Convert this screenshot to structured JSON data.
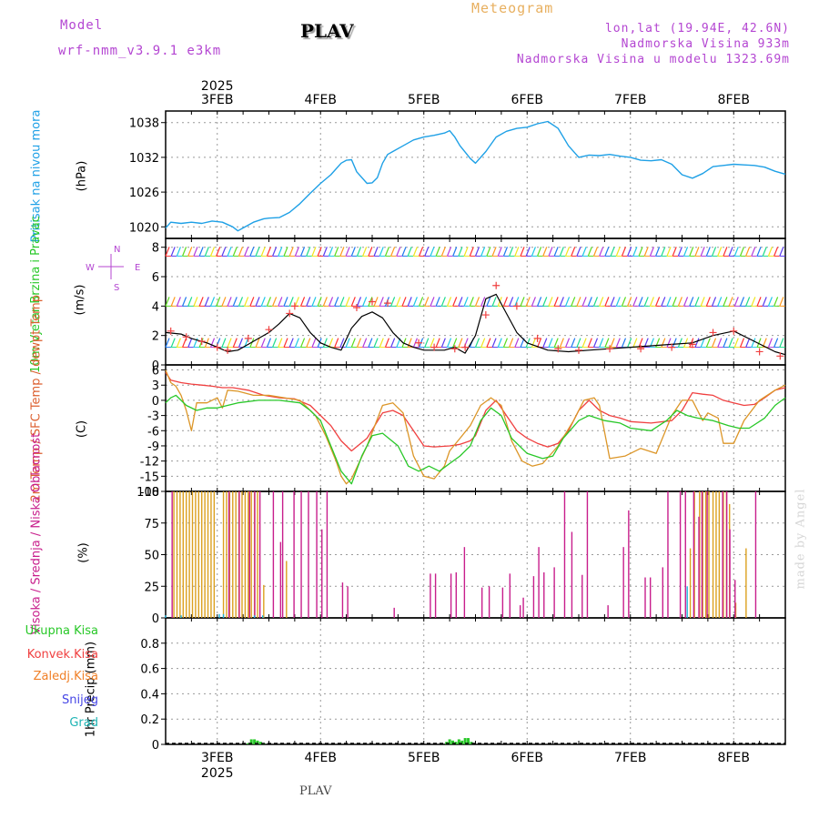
{
  "header": {
    "model_label": "Model",
    "model_name": "wrf-nmm_v3.9.1 e3km",
    "station": "PLAV",
    "meteogram": "Meteogram",
    "lonlat": "lon,lat (19.94E, 42.6N)",
    "altitude": "Nadmorska Visina 933m",
    "model_altitude": "Nadmorska Visina u modelu 1323.69m"
  },
  "footer": {
    "station": "PLAV",
    "credit": "made by Angel"
  },
  "colors": {
    "pressure": "#1ea0e6",
    "temp": "#f04040",
    "sfc": "#dc9628",
    "dew": "#28c828",
    "vis": "#1eb4dc",
    "sred": "#dca01e",
    "nis": "#c81e8c",
    "purple": "#b446d2"
  },
  "chart_data": [
    {
      "type": "line",
      "title": "Pritisak na nivou mora",
      "ylabel": "(hPa)",
      "x_top_labels": [
        "3FEB",
        "4FEB",
        "5FEB",
        "6FEB",
        "7FEB",
        "8FEB"
      ],
      "year_top": "2025",
      "ylim": [
        1018,
        1040
      ],
      "yticks": [
        1020,
        1026,
        1032,
        1038
      ],
      "x_unit": "day offset from 3FEB 00Z",
      "series": [
        {
          "name": "MSLP",
          "color": "#1ea0e6",
          "x": [
            -0.5,
            -0.45,
            -0.35,
            -0.25,
            -0.15,
            -0.05,
            0.05,
            0.15,
            0.2,
            0.25,
            0.35,
            0.45,
            0.5,
            0.6,
            0.7,
            0.8,
            0.9,
            1.0,
            1.1,
            1.2,
            1.25,
            1.3,
            1.35,
            1.45,
            1.5,
            1.55,
            1.6,
            1.65,
            1.7,
            1.8,
            1.9,
            2.0,
            2.1,
            2.2,
            2.25,
            2.3,
            2.35,
            2.45,
            2.5,
            2.6,
            2.7,
            2.8,
            2.9,
            3.0,
            3.1,
            3.2,
            3.3,
            3.4,
            3.5,
            3.6,
            3.7,
            3.8,
            3.9,
            4.0,
            4.1,
            4.2,
            4.3,
            4.4,
            4.5,
            4.6,
            4.7,
            4.8,
            4.9,
            5.0,
            5.1,
            5.2,
            5.3,
            5.4,
            5.5
          ],
          "values": [
            1019.8,
            1020.8,
            1020.6,
            1020.8,
            1020.6,
            1021.0,
            1020.8,
            1020.0,
            1019.3,
            1019.8,
            1020.8,
            1021.4,
            1021.5,
            1021.6,
            1022.5,
            1024.0,
            1025.8,
            1027.5,
            1029.0,
            1031.0,
            1031.5,
            1031.6,
            1029.5,
            1027.5,
            1027.6,
            1028.5,
            1031.0,
            1032.5,
            1033.0,
            1034.0,
            1035.0,
            1035.5,
            1035.8,
            1036.2,
            1036.6,
            1035.5,
            1034.0,
            1031.8,
            1031.0,
            1033.0,
            1035.5,
            1036.5,
            1037.0,
            1037.2,
            1037.8,
            1038.2,
            1037.0,
            1034.0,
            1032.0,
            1032.4,
            1032.3,
            1032.5,
            1032.2,
            1032.0,
            1031.5,
            1031.4,
            1031.6,
            1030.8,
            1029.0,
            1028.4,
            1029.2,
            1030.4,
            1030.6,
            1030.8,
            1030.7,
            1030.6,
            1030.3,
            1029.6,
            1029.1
          ]
        }
      ]
    },
    {
      "type": "line",
      "title": "10m Vjetar Brzina i Pravac",
      "ylabel": "(m/s)",
      "compass": {
        "n": "N",
        "s": "S",
        "w": "W",
        "e": "E"
      },
      "ylim": [
        0,
        8.6
      ],
      "yticks": [
        0,
        2,
        4,
        6,
        8
      ],
      "series": [
        {
          "name": "Brzina",
          "color": "#000000",
          "x": [
            -0.5,
            -0.35,
            -0.25,
            -0.1,
            0.0,
            0.1,
            0.2,
            0.3,
            0.4,
            0.5,
            0.6,
            0.7,
            0.8,
            0.9,
            1.0,
            1.1,
            1.2,
            1.3,
            1.4,
            1.5,
            1.6,
            1.7,
            1.8,
            1.9,
            2.0,
            2.1,
            2.2,
            2.3,
            2.4,
            2.5,
            2.6,
            2.7,
            2.8,
            2.9,
            3.0,
            3.2,
            3.4,
            3.6,
            3.8,
            4.0,
            4.2,
            4.4,
            4.6,
            4.8,
            5.0,
            5.2,
            5.4,
            5.5
          ],
          "values": [
            2.2,
            2.1,
            1.8,
            1.5,
            1.2,
            0.9,
            1.0,
            1.4,
            1.8,
            2.2,
            2.8,
            3.5,
            3.2,
            2.2,
            1.5,
            1.2,
            1.0,
            2.5,
            3.3,
            3.6,
            3.2,
            2.2,
            1.5,
            1.2,
            1.0,
            1.0,
            1.0,
            1.2,
            0.8,
            2.0,
            4.5,
            4.8,
            3.5,
            2.2,
            1.5,
            1.0,
            0.9,
            1.0,
            1.1,
            1.2,
            1.3,
            1.4,
            1.5,
            2.0,
            2.3,
            1.6,
            0.9,
            0.7
          ]
        },
        {
          "name": "Plus",
          "color": "#f04040",
          "x": [
            -0.45,
            -0.3,
            -0.15,
            0.0,
            0.1,
            0.3,
            0.5,
            0.7,
            0.75,
            1.35,
            1.5,
            1.65,
            1.95,
            2.1,
            2.3,
            2.4,
            2.6,
            2.7,
            2.9,
            3.1,
            3.3,
            3.5,
            3.8,
            4.1,
            4.4,
            4.6,
            4.8,
            5.0,
            5.25,
            5.45
          ],
          "values": [
            2.3,
            1.9,
            1.6,
            1.2,
            1.0,
            1.8,
            2.4,
            3.5,
            4.0,
            3.9,
            4.3,
            4.2,
            1.5,
            1.2,
            1.1,
            1.2,
            3.4,
            5.4,
            4.0,
            1.8,
            1.1,
            1.0,
            1.1,
            1.1,
            1.2,
            1.4,
            2.2,
            2.3,
            0.9,
            0.6
          ]
        }
      ],
      "wind_rows": [
        7.4,
        4.0,
        1.2
      ]
    },
    {
      "type": "line",
      "title": "2m Temp / SFC Temp / dewpt Temp",
      "ylabel": "(C)",
      "ylim": [
        -18,
        7
      ],
      "yticks": [
        -18,
        -15,
        -12,
        -9,
        -6,
        -3,
        0,
        3,
        6
      ],
      "series": [
        {
          "name": "2m Temp",
          "color": "#f04040",
          "x": [
            -0.5,
            -0.45,
            -0.35,
            -0.25,
            -0.15,
            -0.05,
            0.05,
            0.15,
            0.3,
            0.45,
            0.6,
            0.75,
            0.9,
            1.0,
            1.1,
            1.2,
            1.3,
            1.45,
            1.6,
            1.7,
            1.8,
            1.9,
            2.0,
            2.1,
            2.25,
            2.35,
            2.45,
            2.5,
            2.6,
            2.7,
            2.8,
            2.9,
            3.0,
            3.1,
            3.2,
            3.3,
            3.4,
            3.5,
            3.6,
            3.7,
            3.8,
            3.9,
            4.0,
            4.2,
            4.4,
            4.5,
            4.6,
            4.7,
            4.8,
            4.9,
            5.0,
            5.1,
            5.2,
            5.3,
            5.4,
            5.5
          ],
          "values": [
            5.5,
            4.0,
            3.5,
            3.2,
            3.0,
            2.8,
            2.5,
            2.5,
            2.0,
            1.0,
            0.5,
            0.3,
            -1.0,
            -3.0,
            -5.0,
            -8.0,
            -10.0,
            -7.5,
            -2.5,
            -2.0,
            -3.0,
            -6.0,
            -9.0,
            -9.2,
            -9.0,
            -8.7,
            -8.0,
            -7.0,
            -2.0,
            0.0,
            -3.0,
            -6.0,
            -7.5,
            -8.5,
            -9.2,
            -8.5,
            -6.0,
            -2.0,
            0.0,
            -2.0,
            -3.0,
            -3.5,
            -4.2,
            -4.5,
            -4.0,
            -2.0,
            1.5,
            1.2,
            1.0,
            0.0,
            -0.5,
            -1.0,
            -0.8,
            0.5,
            2.0,
            2.5
          ]
        },
        {
          "name": "SFC Temp",
          "color": "#dc9628",
          "x": [
            -0.5,
            -0.45,
            -0.4,
            -0.35,
            -0.3,
            -0.25,
            -0.2,
            -0.1,
            0.0,
            0.05,
            0.1,
            0.2,
            0.35,
            0.5,
            0.65,
            0.8,
            0.95,
            1.05,
            1.15,
            1.2,
            1.25,
            1.3,
            1.45,
            1.6,
            1.7,
            1.8,
            1.9,
            2.0,
            2.1,
            2.2,
            2.25,
            2.35,
            2.45,
            2.55,
            2.65,
            2.75,
            2.85,
            2.95,
            3.05,
            3.15,
            3.3,
            3.45,
            3.55,
            3.65,
            3.7,
            3.8,
            3.95,
            4.1,
            4.25,
            4.4,
            4.5,
            4.6,
            4.7,
            4.75,
            4.85,
            4.9,
            5.0,
            5.1,
            5.25,
            5.4,
            5.5
          ],
          "values": [
            6.0,
            3.5,
            2.8,
            1.0,
            -2.0,
            -6.0,
            -0.5,
            -0.5,
            0.5,
            -1.5,
            2.0,
            1.8,
            1.0,
            1.0,
            0.5,
            0.0,
            -3.0,
            -7.0,
            -12.0,
            -15.0,
            -16.5,
            -15.5,
            -9.0,
            -1.0,
            -0.5,
            -2.5,
            -11.0,
            -15.0,
            -15.5,
            -13.0,
            -10.0,
            -7.5,
            -5.0,
            -1.0,
            0.5,
            -1.0,
            -8.0,
            -12.0,
            -13.0,
            -12.5,
            -9.0,
            -4.0,
            0.0,
            0.5,
            -1.0,
            -11.5,
            -11.0,
            -9.5,
            -10.5,
            -3.0,
            0.0,
            0.0,
            -4.0,
            -2.5,
            -3.5,
            -8.5,
            -8.5,
            -4.0,
            0.0,
            2.0,
            3.0
          ]
        },
        {
          "name": "dewpt Temp",
          "color": "#28c828",
          "x": [
            -0.5,
            -0.45,
            -0.4,
            -0.3,
            -0.2,
            -0.1,
            0.0,
            0.1,
            0.2,
            0.4,
            0.6,
            0.8,
            0.9,
            1.0,
            1.1,
            1.2,
            1.3,
            1.4,
            1.5,
            1.6,
            1.75,
            1.85,
            1.95,
            2.05,
            2.15,
            2.25,
            2.35,
            2.45,
            2.55,
            2.65,
            2.75,
            2.85,
            3.0,
            3.15,
            3.25,
            3.35,
            3.5,
            3.6,
            3.75,
            3.9,
            4.0,
            4.2,
            4.35,
            4.45,
            4.55,
            4.65,
            4.8,
            4.95,
            5.05,
            5.15,
            5.3,
            5.4,
            5.5
          ],
          "values": [
            -0.5,
            0.5,
            1.0,
            -1.0,
            -2.0,
            -1.5,
            -1.5,
            -1.0,
            -0.5,
            0.0,
            0.0,
            -0.5,
            -2.0,
            -4.0,
            -9.0,
            -14.0,
            -16.5,
            -11.0,
            -7.0,
            -6.5,
            -9.0,
            -13.0,
            -14.0,
            -13.0,
            -14.0,
            -12.5,
            -11.0,
            -9.0,
            -4.0,
            -1.5,
            -3.0,
            -7.5,
            -10.5,
            -11.5,
            -11.0,
            -7.5,
            -4.0,
            -3.0,
            -4.0,
            -4.5,
            -5.5,
            -6.0,
            -4.0,
            -2.0,
            -3.0,
            -3.5,
            -4.0,
            -5.0,
            -5.5,
            -5.5,
            -3.5,
            -1.0,
            0.5
          ]
        }
      ]
    },
    {
      "type": "bar",
      "title": "Visoka / Srednja / Niska Oblacnost",
      "ylabel": "(%)",
      "ylim": [
        0,
        100
      ],
      "yticks": [
        0,
        25,
        50,
        75,
        100
      ],
      "series": [
        {
          "name": "Srednja Oblacnost",
          "color": "#dca01e",
          "x": [
            -0.42,
            -0.39,
            -0.36,
            -0.33,
            -0.3,
            -0.27,
            -0.24,
            -0.21,
            -0.18,
            -0.15,
            -0.12,
            -0.09,
            -0.06,
            -0.03,
            0.06,
            0.09,
            0.12,
            0.15,
            0.18,
            0.21,
            0.24,
            0.27,
            0.3,
            0.33,
            0.36,
            0.39,
            0.45,
            0.67,
            4.58,
            4.62,
            4.67,
            4.7,
            4.73,
            4.76,
            4.8,
            4.83,
            4.86,
            4.9,
            4.93,
            4.96,
            5.02,
            5.12
          ],
          "values": [
            100,
            100,
            100,
            100,
            100,
            100,
            100,
            100,
            100,
            100,
            100,
            100,
            100,
            100,
            100,
            100,
            100,
            100,
            100,
            100,
            100,
            100,
            100,
            100,
            100,
            100,
            26,
            45,
            55,
            100,
            100,
            100,
            100,
            100,
            100,
            100,
            100,
            100,
            100,
            90,
            12,
            55
          ]
        },
        {
          "name": "Niska Oblacnost",
          "color": "#c81e8c",
          "x": [
            -0.45,
            0.1,
            0.2,
            0.3,
            0.35,
            0.4,
            0.53,
            0.6,
            0.62,
            0.73,
            0.8,
            0.87,
            0.95,
            1.0,
            1.05,
            1.2,
            1.25,
            1.7,
            2.05,
            2.1,
            2.25,
            2.3,
            2.38,
            2.55,
            2.62,
            2.75,
            2.82,
            2.92,
            2.95,
            3.05,
            3.1,
            3.15,
            3.25,
            3.35,
            3.42,
            3.52,
            3.57,
            3.77,
            3.92,
            3.97,
            4.13,
            4.18,
            4.3,
            4.35,
            4.47,
            4.52,
            4.6,
            4.65,
            4.68,
            4.73,
            4.88,
            4.92,
            4.95,
            5.0,
            5.2
          ],
          "values": [
            100,
            100,
            100,
            100,
            100,
            100,
            100,
            60,
            100,
            100,
            100,
            100,
            100,
            70,
            100,
            28,
            25,
            8,
            35,
            35,
            35,
            36,
            56,
            24,
            25,
            24,
            35,
            10,
            16,
            33,
            56,
            36,
            40,
            100,
            68,
            34,
            100,
            10,
            56,
            85,
            32,
            32,
            40,
            100,
            100,
            100,
            100,
            80,
            100,
            100,
            100,
            100,
            70,
            30,
            100
          ]
        },
        {
          "name": "Visoka Oblacnost",
          "color": "#1eb4dc",
          "x": [
            -0.5,
            -0.35,
            0.02,
            0.06,
            0.36,
            0.44,
            4.55
          ],
          "values": [
            2,
            2,
            3,
            3,
            2,
            2,
            25
          ]
        }
      ]
    },
    {
      "type": "bar",
      "title": "1hr Precip",
      "ylabel": "1hr Precip (mm)",
      "legend": [
        "Ukupna Kisa",
        "Konvek.Kisa",
        "Zaledj.Kisa",
        "Snijeg",
        "Grad"
      ],
      "legend_colors": [
        "#28c828",
        "#f04040",
        "#f08028",
        "#4646e6",
        "#1eb4b4"
      ],
      "x_bottom_labels": [
        "3FEB",
        "4FEB",
        "5FEB",
        "6FEB",
        "7FEB",
        "8FEB"
      ],
      "year_bottom": "2025",
      "ylim": [
        0,
        1
      ],
      "yticks": [
        0,
        0.2,
        0.4,
        0.6,
        0.8
      ],
      "series": [
        {
          "name": "Ukupna Kisa",
          "color": "#28c828",
          "x": [
            0.3,
            0.33,
            0.36,
            0.39,
            0.42,
            0.45,
            2.22,
            2.25,
            2.28,
            2.31,
            2.34,
            2.37,
            2.4,
            2.43,
            2.46
          ],
          "values": [
            0.01,
            0.04,
            0.04,
            0.03,
            0.02,
            0.01,
            0.02,
            0.04,
            0.03,
            0.02,
            0.04,
            0.03,
            0.05,
            0.05,
            0.02
          ]
        }
      ]
    }
  ]
}
